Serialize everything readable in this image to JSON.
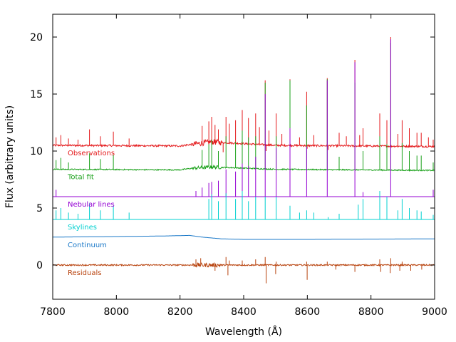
{
  "chart_data": {
    "type": "line",
    "title": "",
    "xlabel": "Wavelength (Å)",
    "ylabel": "Flux (arbitrary units)",
    "xlim": [
      7800,
      9000
    ],
    "ylim": [
      -3,
      22
    ],
    "xticks": [
      7800,
      8000,
      8200,
      8400,
      8600,
      8800,
      9000
    ],
    "yticks": [
      0,
      5,
      10,
      15,
      20
    ],
    "grid": false,
    "legend": "inline",
    "series": [
      {
        "name": "Observations",
        "color": "#e41a1c",
        "baseline": [
          [
            7800,
            10.5
          ],
          [
            8200,
            10.45
          ],
          [
            8240,
            10.6
          ],
          [
            8300,
            10.8
          ],
          [
            8500,
            10.5
          ],
          [
            9000,
            10.4
          ]
        ],
        "peaks": [
          [
            7810,
            11.2
          ],
          [
            7825,
            11.4
          ],
          [
            7850,
            11.1
          ],
          [
            7880,
            11.0
          ],
          [
            7915,
            11.9
          ],
          [
            7950,
            11.3
          ],
          [
            7990,
            11.7
          ],
          [
            8040,
            11.1
          ],
          [
            8270,
            12.2
          ],
          [
            8290,
            12.6
          ],
          [
            8300,
            13.0
          ],
          [
            8310,
            12.3
          ],
          [
            8320,
            11.9
          ],
          [
            8345,
            13.0
          ],
          [
            8355,
            12.4
          ],
          [
            8375,
            12.7
          ],
          [
            8395,
            13.6
          ],
          [
            8415,
            12.9
          ],
          [
            8438,
            13.3
          ],
          [
            8450,
            12.1
          ],
          [
            8467,
            16.2
          ],
          [
            8480,
            11.8
          ],
          [
            8502,
            13.3
          ],
          [
            8520,
            11.5
          ],
          [
            8545,
            16.3
          ],
          [
            8575,
            11.2
          ],
          [
            8598,
            15.2
          ],
          [
            8620,
            11.4
          ],
          [
            8662,
            16.4
          ],
          [
            8700,
            11.6
          ],
          [
            8722,
            11.3
          ],
          [
            8750,
            18.0
          ],
          [
            8765,
            11.4
          ],
          [
            8775,
            12.0
          ],
          [
            8828,
            13.3
          ],
          [
            8850,
            12.7
          ],
          [
            8862,
            20.0
          ],
          [
            8885,
            11.5
          ],
          [
            8898,
            12.7
          ],
          [
            8920,
            12.0
          ],
          [
            8945,
            11.6
          ],
          [
            8958,
            11.6
          ],
          [
            8980,
            11.2
          ],
          [
            8995,
            11.0
          ]
        ],
        "dips": [
          [
            8335,
            9.9
          ],
          [
            8470,
            10.0
          ],
          [
            8600,
            10.2
          ],
          [
            8665,
            10.1
          ]
        ],
        "noise": 0.08
      },
      {
        "name": "Total fit",
        "color": "#1aa11a",
        "baseline": [
          [
            7800,
            8.4
          ],
          [
            8200,
            8.35
          ],
          [
            8240,
            8.5
          ],
          [
            8300,
            8.6
          ],
          [
            8500,
            8.4
          ],
          [
            9000,
            8.3
          ]
        ],
        "peaks": [
          [
            7810,
            9.2
          ],
          [
            7825,
            9.4
          ],
          [
            7850,
            9.0
          ],
          [
            7915,
            9.8
          ],
          [
            7950,
            9.3
          ],
          [
            7990,
            9.7
          ],
          [
            8270,
            10.1
          ],
          [
            8290,
            10.6
          ],
          [
            8300,
            11.0
          ],
          [
            8320,
            10.0
          ],
          [
            8345,
            11.3
          ],
          [
            8375,
            10.8
          ],
          [
            8395,
            11.8
          ],
          [
            8415,
            11.2
          ],
          [
            8438,
            11.3
          ],
          [
            8467,
            16.0
          ],
          [
            8502,
            11.3
          ],
          [
            8545,
            16.2
          ],
          [
            8598,
            14.0
          ],
          [
            8662,
            16.3
          ],
          [
            8700,
            9.5
          ],
          [
            8750,
            16.0
          ],
          [
            8775,
            10.0
          ],
          [
            8828,
            11.3
          ],
          [
            8850,
            10.6
          ],
          [
            8862,
            19.5
          ],
          [
            8898,
            10.7
          ],
          [
            8920,
            10.0
          ],
          [
            8945,
            9.6
          ],
          [
            8958,
            9.6
          ],
          [
            8995,
            9.0
          ]
        ],
        "dips": [],
        "noise": 0.05
      },
      {
        "name": "Nebular lines",
        "color": "#9400d3",
        "baseline": [
          [
            7800,
            6.0
          ],
          [
            9000,
            6.0
          ]
        ],
        "peaks": [
          [
            7810,
            6.6
          ],
          [
            8250,
            6.5
          ],
          [
            8270,
            6.8
          ],
          [
            8290,
            7.2
          ],
          [
            8300,
            7.3
          ],
          [
            8320,
            7.4
          ],
          [
            8345,
            8.4
          ],
          [
            8375,
            8.2
          ],
          [
            8395,
            8.9
          ],
          [
            8415,
            8.7
          ],
          [
            8438,
            9.5
          ],
          [
            8467,
            15.0
          ],
          [
            8502,
            10.3
          ],
          [
            8545,
            12.0
          ],
          [
            8598,
            10.4
          ],
          [
            8662,
            16.2
          ],
          [
            8750,
            17.8
          ],
          [
            8775,
            6.4
          ],
          [
            8862,
            19.8
          ],
          [
            8995,
            6.6
          ]
        ],
        "dips": [],
        "noise": 0.0
      },
      {
        "name": "Skylines",
        "color": "#00d0d0",
        "baseline": [
          [
            7800,
            4.0
          ],
          [
            9000,
            4.0
          ]
        ],
        "peaks": [
          [
            7810,
            4.8
          ],
          [
            7825,
            5.0
          ],
          [
            7850,
            4.6
          ],
          [
            7880,
            4.5
          ],
          [
            7915,
            5.4
          ],
          [
            7950,
            4.8
          ],
          [
            7990,
            5.2
          ],
          [
            8040,
            4.6
          ],
          [
            8290,
            5.8
          ],
          [
            8300,
            6.2
          ],
          [
            8320,
            5.6
          ],
          [
            8345,
            6.3
          ],
          [
            8375,
            5.8
          ],
          [
            8395,
            6.5
          ],
          [
            8415,
            5.6
          ],
          [
            8438,
            6.0
          ],
          [
            8467,
            6.0
          ],
          [
            8502,
            6.0
          ],
          [
            8545,
            5.2
          ],
          [
            8575,
            4.6
          ],
          [
            8598,
            4.8
          ],
          [
            8620,
            4.6
          ],
          [
            8665,
            4.2
          ],
          [
            8700,
            4.5
          ],
          [
            8760,
            5.3
          ],
          [
            8775,
            5.8
          ],
          [
            8828,
            6.5
          ],
          [
            8850,
            6.0
          ],
          [
            8885,
            4.8
          ],
          [
            8898,
            5.8
          ],
          [
            8920,
            5.0
          ],
          [
            8945,
            4.8
          ],
          [
            8958,
            4.7
          ],
          [
            8995,
            4.4
          ]
        ],
        "dips": [],
        "noise": 0.0
      },
      {
        "name": "Continuum",
        "color": "#1a78c8",
        "baseline": [
          [
            7800,
            2.45
          ],
          [
            8000,
            2.5
          ],
          [
            8150,
            2.55
          ],
          [
            8230,
            2.6
          ],
          [
            8270,
            2.45
          ],
          [
            8330,
            2.3
          ],
          [
            8400,
            2.25
          ],
          [
            8600,
            2.25
          ],
          [
            9000,
            2.3
          ]
        ],
        "peaks": [],
        "dips": [],
        "noise": 0.0
      },
      {
        "name": "Residuals",
        "color": "#b8430e",
        "baseline": [
          [
            7800,
            0.0
          ],
          [
            9000,
            0.0
          ]
        ],
        "peaks": [
          [
            8250,
            0.5
          ],
          [
            8265,
            0.6
          ],
          [
            8345,
            0.7
          ],
          [
            8355,
            0.4
          ],
          [
            8395,
            0.4
          ],
          [
            8438,
            0.5
          ],
          [
            8467,
            0.7
          ],
          [
            8502,
            0.3
          ],
          [
            8598,
            0.3
          ],
          [
            8662,
            0.3
          ],
          [
            8750,
            0.4
          ],
          [
            8828,
            0.5
          ],
          [
            8862,
            0.6
          ],
          [
            8898,
            0.3
          ]
        ],
        "dips": [
          [
            8310,
            -0.5
          ],
          [
            8350,
            -0.9
          ],
          [
            8470,
            -1.6
          ],
          [
            8500,
            -0.8
          ],
          [
            8600,
            -1.3
          ],
          [
            8690,
            -0.4
          ],
          [
            8750,
            -0.6
          ],
          [
            8830,
            -0.6
          ],
          [
            8860,
            -0.7
          ],
          [
            8890,
            -0.5
          ],
          [
            8925,
            -0.5
          ],
          [
            8960,
            -0.4
          ]
        ],
        "noise": 0.06
      }
    ]
  }
}
